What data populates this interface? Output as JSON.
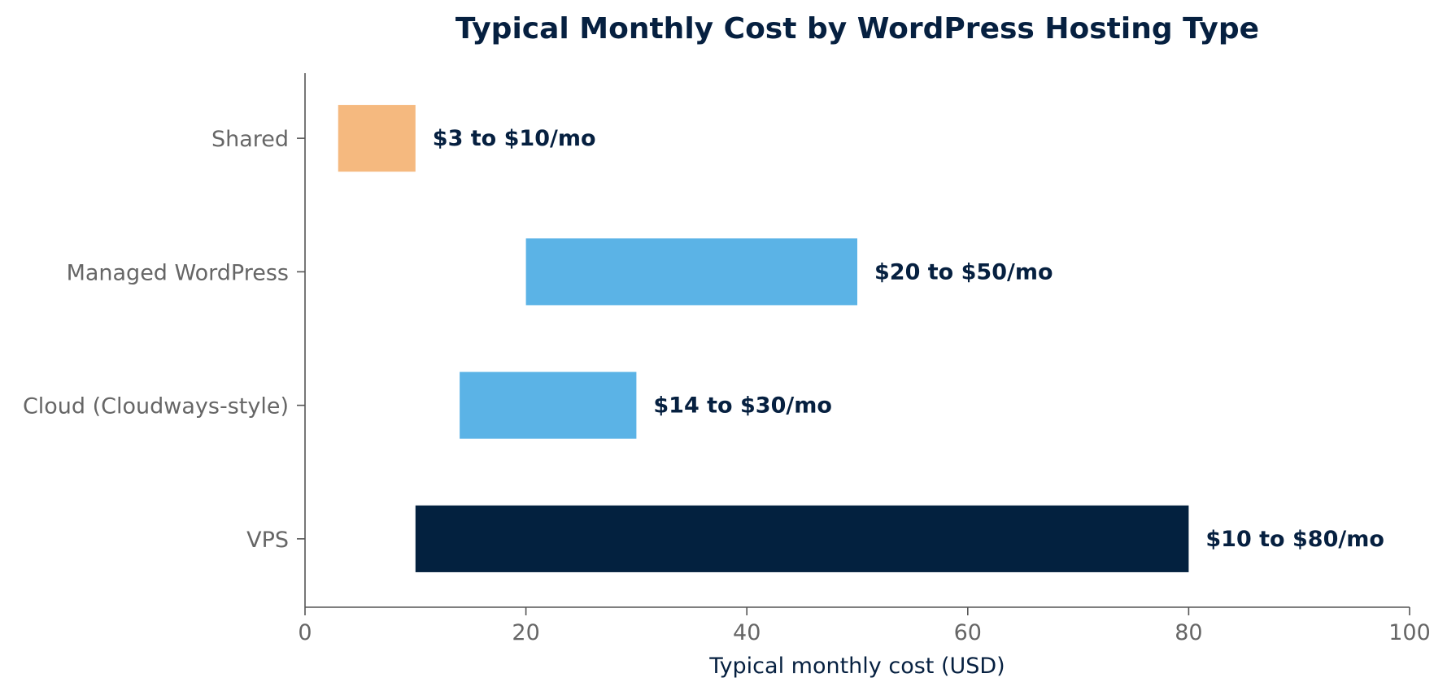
{
  "chart_data": {
    "type": "bar",
    "orientation": "horizontal",
    "title": "Typical Monthly Cost by WordPress Hosting Type",
    "xlabel": "Typical monthly cost (USD)",
    "ylabel": "",
    "xlim": [
      0,
      100
    ],
    "xticks": [
      0,
      20,
      40,
      60,
      80,
      100
    ],
    "grid": false,
    "categories": [
      "Shared",
      "Managed WordPress",
      "Cloud (Cloudways-style)",
      "VPS"
    ],
    "ranges": [
      {
        "category": "Shared",
        "low": 3,
        "high": 10,
        "label": "$3 to $10/mo",
        "color": "#F5B97F"
      },
      {
        "category": "Managed WordPress",
        "low": 20,
        "high": 50,
        "label": "$20 to $50/mo",
        "color": "#5BB3E6"
      },
      {
        "category": "Cloud (Cloudways-style)",
        "low": 14,
        "high": 30,
        "label": "$14 to $30/mo",
        "color": "#5BB3E6"
      },
      {
        "category": "VPS",
        "low": 10,
        "high": 80,
        "label": "$10 to $80/mo",
        "color": "#03213F"
      }
    ]
  }
}
